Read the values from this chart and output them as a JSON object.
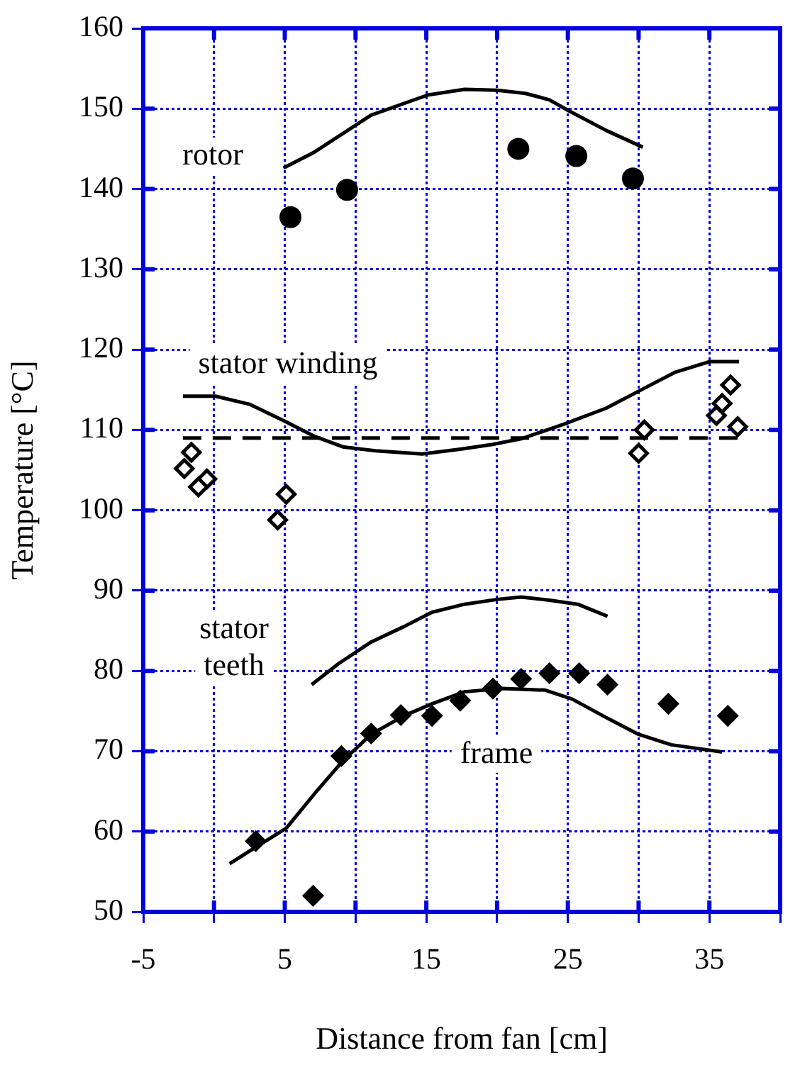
{
  "chart_data": {
    "type": "scatter",
    "xlabel": "Distance from fan [cm]",
    "ylabel": "Temperature [°C]",
    "xlim": [
      -5,
      40
    ],
    "ylim": [
      50,
      160
    ],
    "xticks": [
      -5,
      {
        "value": 0,
        "label": null
      },
      5,
      {
        "value": 10,
        "label": null
      },
      15,
      {
        "value": 20,
        "label": null
      },
      25,
      {
        "value": 30,
        "label": null
      },
      35,
      {
        "value": 40,
        "label": null
      }
    ],
    "yticks": [
      50,
      60,
      70,
      80,
      90,
      100,
      110,
      120,
      130,
      140,
      150,
      160
    ],
    "grid": true,
    "legend": false,
    "series": [
      {
        "type": "line",
        "marker": "none",
        "color": "#000000",
        "x": [
          4.9,
          7.1,
          11.1,
          15.1,
          17.7,
          20.0,
          22.0,
          23.7,
          25.0,
          27.7,
          30.3
        ],
        "values": [
          142.6,
          144.6,
          149.2,
          151.7,
          152.4,
          152.3,
          151.9,
          151.1,
          149.8,
          147.3,
          145.2
        ]
      },
      {
        "marker": "circle",
        "color": "#000000",
        "x": [
          5.4,
          9.4,
          21.5,
          25.6,
          29.6
        ],
        "values": [
          136.5,
          139.9,
          145.0,
          144.1,
          141.3
        ]
      },
      {
        "type": "line",
        "marker": "none",
        "color": "#000000",
        "x": [
          -2.2,
          0.1,
          2.5,
          5.1,
          7.1,
          9.1,
          11.4,
          14.7,
          17.4,
          19.7,
          21.7,
          24.7,
          27.7,
          30.3,
          32.6,
          35.0,
          37.1
        ],
        "values": [
          114.2,
          114.2,
          113.2,
          111.0,
          109.2,
          107.9,
          107.4,
          107.0,
          107.6,
          108.2,
          108.9,
          110.7,
          112.7,
          115.1,
          117.2,
          118.5,
          118.5
        ]
      },
      {
        "type": "line",
        "marker": "none",
        "line_style": "dashed",
        "color": "#000000",
        "x": [
          -2.2,
          37.1
        ],
        "values": [
          109,
          109
        ]
      },
      {
        "marker": "diamond-open",
        "color": "#000000",
        "x": [
          -1.6,
          -2.1,
          -0.5,
          -1.1,
          5.1,
          4.5,
          30.4,
          30.0,
          36.5,
          35.9,
          35.5,
          37.0
        ],
        "values": [
          107.2,
          105.2,
          103.9,
          102.9,
          102.0,
          98.8,
          110.0,
          107.1,
          115.6,
          113.3,
          111.8,
          110.4
        ]
      },
      {
        "type": "line",
        "marker": "none",
        "color": "#000000",
        "x": [
          6.9,
          8.8,
          11.1,
          13.4,
          15.4,
          17.7,
          20.0,
          21.7,
          23.7,
          25.7,
          27.8
        ],
        "values": [
          78.3,
          80.9,
          83.6,
          85.5,
          87.3,
          88.3,
          88.9,
          89.2,
          88.8,
          88.3,
          86.8
        ]
      },
      {
        "type": "line",
        "marker": "none",
        "color": "#000000",
        "x": [
          1.1,
          2.8,
          5.1,
          7.1,
          9.1,
          11.1,
          13.4,
          15.4,
          17.7,
          20.4,
          23.4,
          25.3,
          27.7,
          30.0,
          32.3,
          35.9
        ],
        "values": [
          56.0,
          57.9,
          60.4,
          64.7,
          68.8,
          72.1,
          74.4,
          75.9,
          77.4,
          77.8,
          77.6,
          76.5,
          74.2,
          72.1,
          70.8,
          69.9
        ]
      },
      {
        "marker": "diamond",
        "color": "#000000",
        "x": [
          2.95,
          7.0,
          9.0,
          11.1,
          13.2,
          15.4,
          17.4,
          19.7,
          21.7,
          23.7,
          25.8,
          27.8,
          32.1,
          36.3
        ],
        "values": [
          58.8,
          52.0,
          69.4,
          72.2,
          74.5,
          74.4,
          76.3,
          77.8,
          79.0,
          79.7,
          79.7,
          78.3,
          75.9,
          74.4
        ]
      }
    ],
    "annotations": [
      "rotor",
      "stator winding",
      "stator",
      "teeth",
      "frame"
    ]
  }
}
